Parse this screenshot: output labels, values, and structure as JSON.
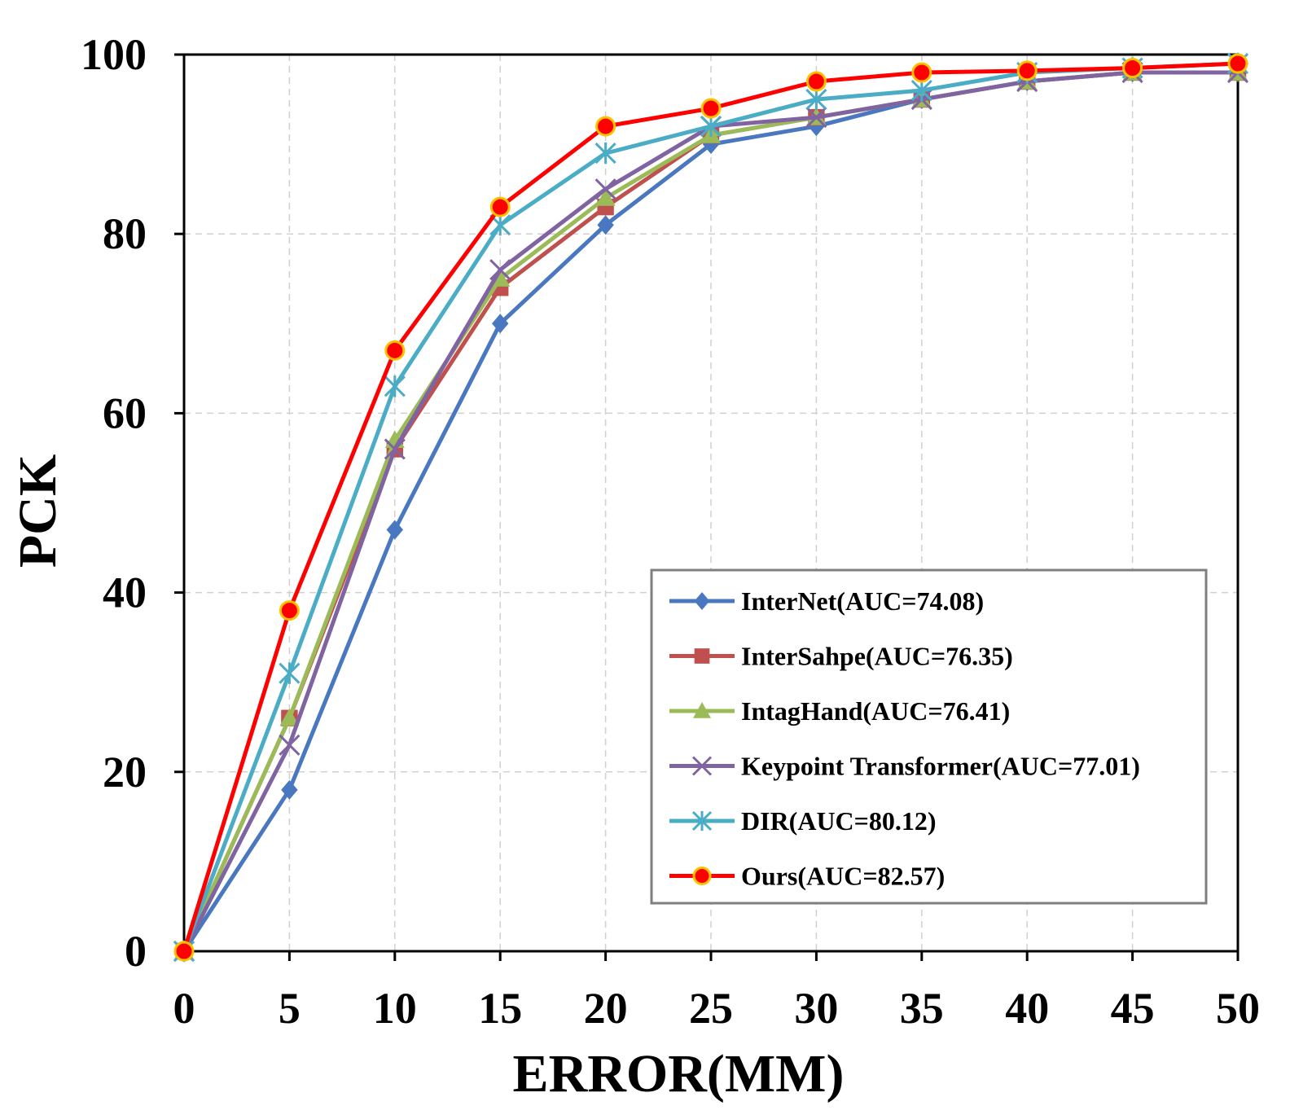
{
  "chart_data": {
    "type": "line",
    "xlabel": "ERROR(MM)",
    "ylabel": "PCK",
    "xlim": [
      0,
      50
    ],
    "ylim": [
      0,
      100
    ],
    "x_ticks": [
      "0",
      "5",
      "10",
      "15",
      "20",
      "25",
      "30",
      "35",
      "40",
      "45",
      "50"
    ],
    "y_ticks": [
      "0",
      "20",
      "40",
      "60",
      "80",
      "100"
    ],
    "grid": true,
    "legend_position": "bottom-right",
    "x": [
      0,
      5,
      10,
      15,
      20,
      25,
      30,
      35,
      40,
      45,
      50
    ],
    "series": [
      {
        "name": "InterNet(AUC=74.08)",
        "color": "#4a78c0",
        "marker": "diamond",
        "values": [
          0,
          18,
          47,
          70,
          81,
          90,
          92,
          95,
          97,
          98,
          98
        ]
      },
      {
        "name": "InterSahpe(AUC=76.35)",
        "color": "#c0504d",
        "marker": "square",
        "values": [
          0,
          26,
          56,
          74,
          83,
          91,
          93,
          95,
          97,
          98,
          98
        ]
      },
      {
        "name": "IntagHand(AUC=76.41)",
        "color": "#9bbb59",
        "marker": "triangle",
        "values": [
          0,
          26,
          57,
          75,
          84,
          91,
          93,
          95,
          97,
          98,
          98
        ]
      },
      {
        "name": "Keypoint Transformer(AUC=77.01)",
        "color": "#8064a2",
        "marker": "x",
        "values": [
          0,
          23,
          56,
          76,
          85,
          92,
          93,
          95,
          97,
          98,
          98
        ]
      },
      {
        "name": "DIR(AUC=80.12)",
        "color": "#4bacc6",
        "marker": "star",
        "values": [
          0,
          31,
          63,
          81,
          89,
          92,
          95,
          96,
          98,
          98.5,
          99
        ]
      },
      {
        "name": "Ours(AUC=82.57)",
        "color": "#ff0000",
        "marker": "circle",
        "values": [
          0,
          38,
          67,
          83,
          92,
          94,
          97,
          98,
          98.2,
          98.5,
          99
        ]
      }
    ]
  }
}
